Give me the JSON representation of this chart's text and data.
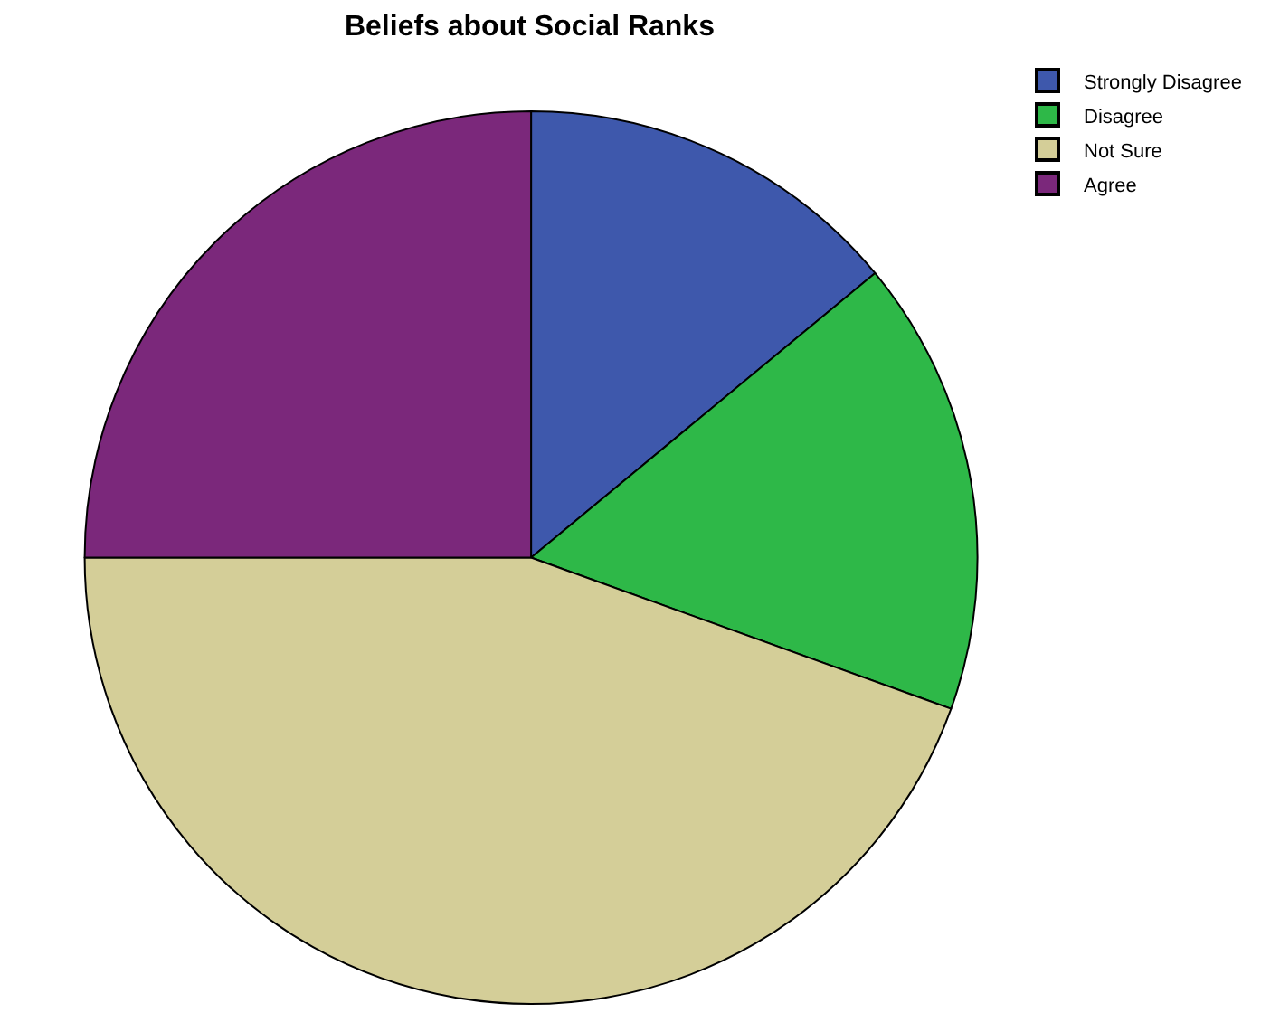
{
  "chart_data": {
    "type": "pie",
    "title": "Beliefs about Social Ranks",
    "categories": [
      "Strongly Disagree",
      "Disagree",
      "Not Sure",
      "Agree"
    ],
    "values": [
      14,
      16.5,
      44.5,
      25
    ],
    "colors": [
      "#3e58ac",
      "#2eb848",
      "#d4ce98",
      "#7b287b"
    ],
    "legend": "top right"
  }
}
